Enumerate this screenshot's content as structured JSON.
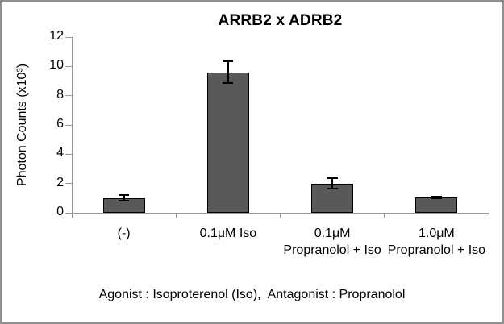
{
  "window": {
    "background": "#ffffff",
    "border_color": "#8f8f8f"
  },
  "chart_data": {
    "type": "bar",
    "title": "ARRB2 x ADRB2",
    "categories": [
      "(-)",
      "0.1μM Iso",
      "0.1μM Propranolol + Iso",
      "1.0μM Propranolol + Iso"
    ],
    "values": [
      1.0,
      9.6,
      2.0,
      1.05
    ],
    "errors": [
      0.2,
      0.75,
      0.35,
      0.05
    ],
    "xlabel": "",
    "ylabel": "Photon Counts (x10³)",
    "yticks": [
      0,
      2,
      4,
      6,
      8,
      10,
      12
    ],
    "ylim": [
      0,
      12
    ],
    "grid": false,
    "legend": "none",
    "bar_color": "#595959",
    "bar_border_color": "#000000",
    "error_bar_color": "#000000",
    "axis_color": "#969696",
    "text_color": "#000000",
    "caption": "Agonist : Isoproterenol (Iso),  Antagonist : Propranolol"
  }
}
